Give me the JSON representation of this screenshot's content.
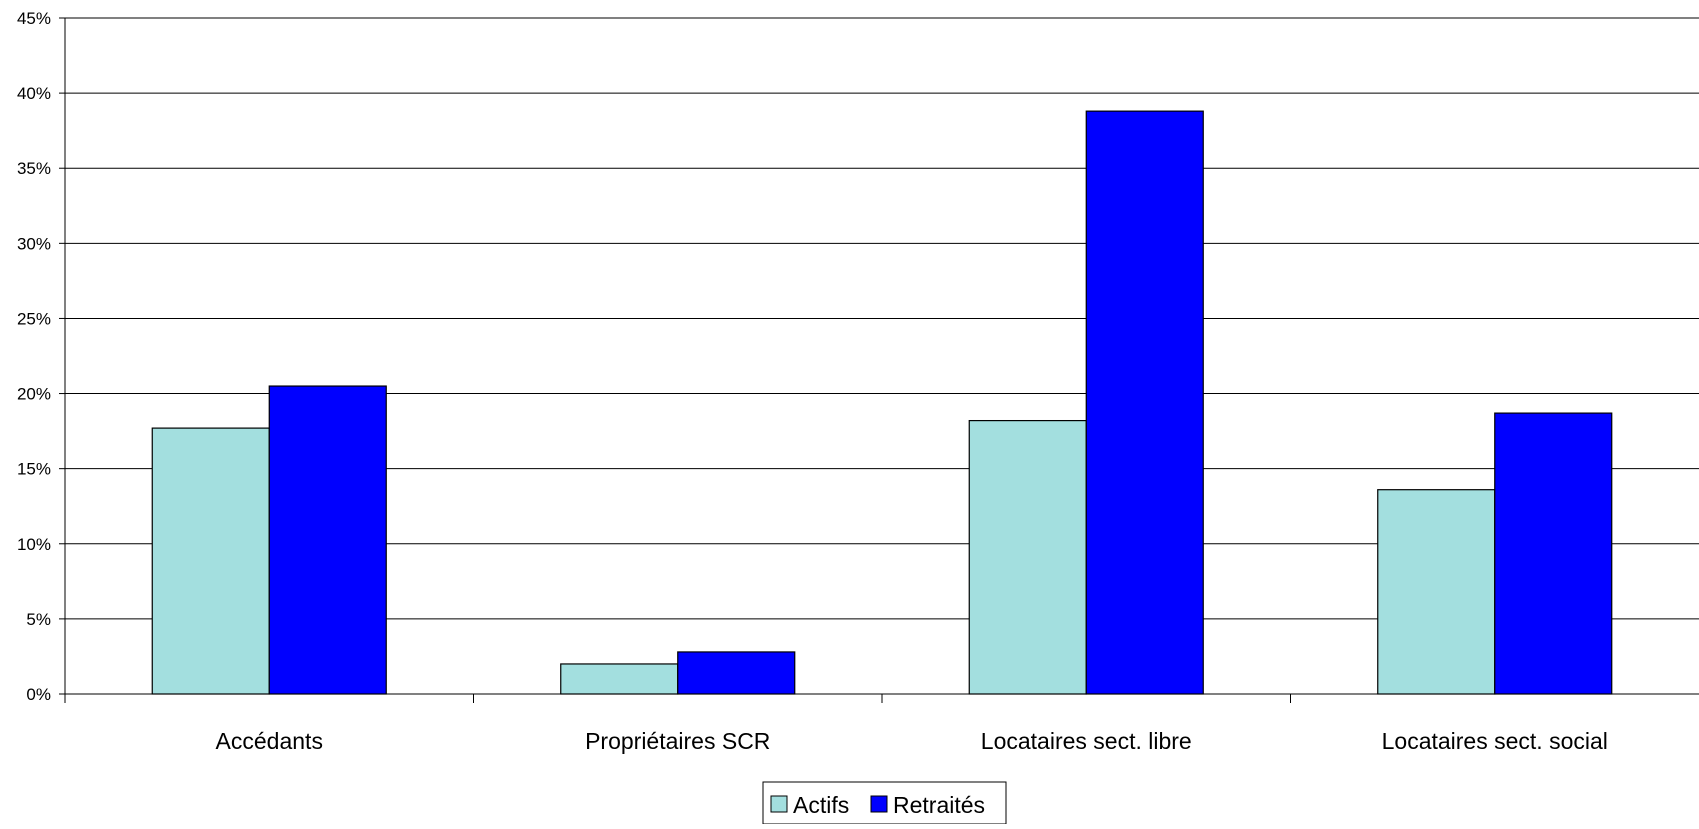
{
  "chart_data": {
    "type": "bar",
    "title": "",
    "xlabel": "",
    "ylabel": "",
    "ylim": [
      0,
      45
    ],
    "y_ticks": [
      "0%",
      "5%",
      "10%",
      "15%",
      "20%",
      "25%",
      "30%",
      "35%",
      "40%",
      "45%"
    ],
    "y_tick_values": [
      0,
      5,
      10,
      15,
      20,
      25,
      30,
      35,
      40,
      45
    ],
    "grid": true,
    "legend_position": "bottom-center",
    "categories": [
      "Accédants",
      "Propriétaires SCR",
      "Locataires sect. libre",
      "Locataires sect. social"
    ],
    "series": [
      {
        "name": "Actifs",
        "color": "#a3dfdf",
        "values": [
          17.7,
          2.0,
          18.2,
          13.6
        ]
      },
      {
        "name": "Retraités",
        "color": "#0000ff",
        "values": [
          20.5,
          2.8,
          38.8,
          18.7
        ]
      }
    ]
  }
}
